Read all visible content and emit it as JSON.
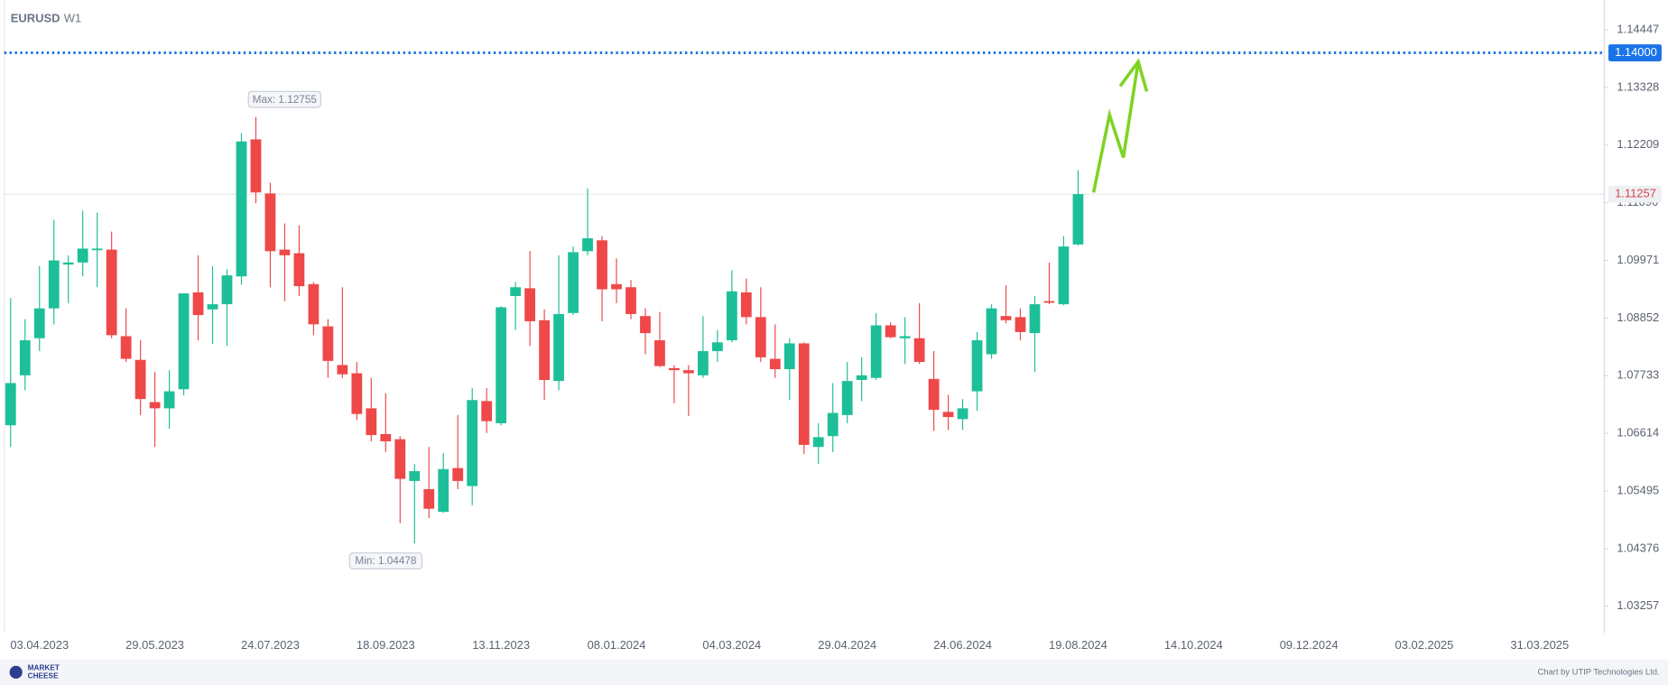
{
  "chart_data": {
    "type": "candlestick",
    "title": "EURUSD",
    "subtitle": "W1",
    "up_color": "#1dbf98",
    "down_color": "#ee4848",
    "ylim": [
      1.02741,
      1.15025
    ],
    "yticks": [
      1.14447,
      1.13328,
      1.12209,
      {
        "value": 1.1109,
        "label": "1.11090"
      },
      1.09971,
      1.08852,
      1.07733,
      1.06614,
      1.05495,
      1.04376,
      1.03257
    ],
    "x_labels": [
      "03.04.2023",
      "29.05.2023",
      "24.07.2023",
      "18.09.2023",
      "13.11.2023",
      "08.01.2024",
      "04.03.2024",
      "29.04.2024",
      "24.06.2024",
      "19.08.2024",
      "14.10.2024",
      "09.12.2024",
      "03.02.2025",
      "31.03.2025"
    ],
    "open": [
      1.0677,
      1.0774,
      1.0846,
      1.0904,
      1.0989,
      1.0993,
      1.1018,
      1.1018,
      1.085,
      1.0804,
      1.0722,
      1.071,
      1.0747,
      1.0935,
      1.0902,
      1.0912,
      1.0966,
      1.1232,
      1.1127,
      1.1018,
      1.1011,
      1.0951,
      1.0869,
      1.0794,
      1.0778,
      1.071,
      1.066,
      1.065,
      1.0569,
      1.0553,
      1.0509,
      1.0594,
      1.0559,
      1.0724,
      1.0681,
      1.0928,
      1.0943,
      1.0881,
      1.0763,
      1.0895,
      1.1015,
      1.1036,
      1.0951,
      1.0945,
      1.0889,
      1.0842,
      1.0788,
      1.0784,
      1.0774,
      1.0821,
      1.0842,
      1.0935,
      1.0887,
      1.0806,
      1.0786,
      1.0836,
      1.0635,
      1.0656,
      1.0697,
      1.0765,
      1.0769,
      1.0871,
      1.0846,
      1.0846,
      1.0767,
      1.0703,
      1.0689,
      1.0743,
      1.0815,
      1.0889,
      1.0887,
      1.0856,
      1.0918,
      1.0912,
      1.1028
    ],
    "high": [
      1.0924,
      1.0883,
      1.0986,
      1.1076,
      1.1007,
      1.1094,
      1.109,
      1.1053,
      1.0904,
      1.0842,
      1.078,
      1.0784,
      1.0933,
      1.1007,
      1.0986,
      1.098,
      1.1244,
      1.12755,
      1.1148,
      1.1069,
      1.1065,
      1.0955,
      1.0883,
      1.0945,
      1.08,
      1.0769,
      1.0739,
      1.0656,
      1.0602,
      1.0635,
      1.0623,
      1.0697,
      1.0749,
      1.0749,
      1.0908,
      1.0955,
      1.1015,
      1.0902,
      1.1007,
      1.1024,
      1.1137,
      1.1044,
      1.1001,
      1.0959,
      1.0904,
      1.0897,
      1.0794,
      1.0794,
      1.0889,
      1.0862,
      1.0978,
      1.0962,
      1.0945,
      1.0873,
      1.0846,
      1.0838,
      1.0681,
      1.0759,
      1.08,
      1.0809,
      1.0895,
      1.0877,
      1.0887,
      1.0914,
      1.0821,
      1.0736,
      1.0728,
      1.0858,
      1.0912,
      1.0949,
      1.0904,
      1.0928,
      1.0993,
      1.1044,
      1.1172
    ],
    "low": [
      1.0635,
      1.0745,
      1.0821,
      1.0873,
      1.0914,
      1.0966,
      1.0945,
      1.0846,
      1.08,
      1.0697,
      1.0635,
      1.067,
      1.0735,
      1.0842,
      1.0835,
      1.0831,
      1.095,
      1.1108,
      1.0945,
      1.0918,
      1.0928,
      1.0852,
      1.0769,
      1.0769,
      1.0687,
      1.0646,
      1.0625,
      1.0487,
      1.04478,
      1.0497,
      1.0507,
      1.0553,
      1.0522,
      1.0662,
      1.0677,
      1.0862,
      1.0831,
      1.0726,
      1.0745,
      1.0891,
      1.1007,
      1.0879,
      1.0914,
      1.0883,
      1.0815,
      1.079,
      1.072,
      1.0695,
      1.0769,
      1.08,
      1.0838,
      1.0873,
      1.08,
      1.0769,
      1.0726,
      1.0621,
      1.0602,
      1.0625,
      1.0681,
      1.0724,
      1.0765,
      1.0846,
      1.0796,
      1.0796,
      1.0666,
      1.0668,
      1.0668,
      1.0705,
      1.0806,
      1.0875,
      1.0842,
      1.078,
      1.0912,
      1.091,
      1.1026
    ],
    "close": [
      1.0759,
      1.0842,
      1.0904,
      1.0997,
      1.0993,
      1.102,
      1.102,
      1.0852,
      1.0806,
      1.0728,
      1.071,
      1.0743,
      1.0933,
      1.0891,
      1.0912,
      1.0968,
      1.1228,
      1.1129,
      1.1015,
      1.1007,
      1.0947,
      1.0873,
      1.0802,
      1.0776,
      1.0699,
      1.0658,
      1.0646,
      1.0573,
      1.0588,
      1.0515,
      1.0592,
      1.0569,
      1.0726,
      1.0685,
      1.0906,
      1.0945,
      1.0879,
      1.0765,
      1.0893,
      1.1013,
      1.104,
      1.0941,
      1.0941,
      1.0893,
      1.0856,
      1.0792,
      1.0784,
      1.0778,
      1.0821,
      1.0838,
      1.0937,
      1.0887,
      1.0809,
      1.0786,
      1.0836,
      1.0639,
      1.0654,
      1.0701,
      1.0763,
      1.0774,
      1.0871,
      1.0848,
      1.085,
      1.08,
      1.0707,
      1.0693,
      1.071,
      1.0842,
      1.0904,
      1.0881,
      1.0858,
      1.0912,
      1.0916,
      1.1024,
      1.11257
    ],
    "target_level": {
      "value": 1.14,
      "label": "1.14000",
      "color": "#1a73e8"
    },
    "price_line": {
      "value": 1.11257,
      "label": "1.11257"
    },
    "max_label": {
      "value": 1.12755,
      "label": "Max: 1.12755"
    },
    "min_label": {
      "value": 1.04478,
      "label": "Min: 1.04478"
    }
  },
  "footer": {
    "logo_top": "MARKET",
    "logo_bottom": "CHEESE",
    "credit": "Chart by UTIP Technologies Ltd."
  }
}
